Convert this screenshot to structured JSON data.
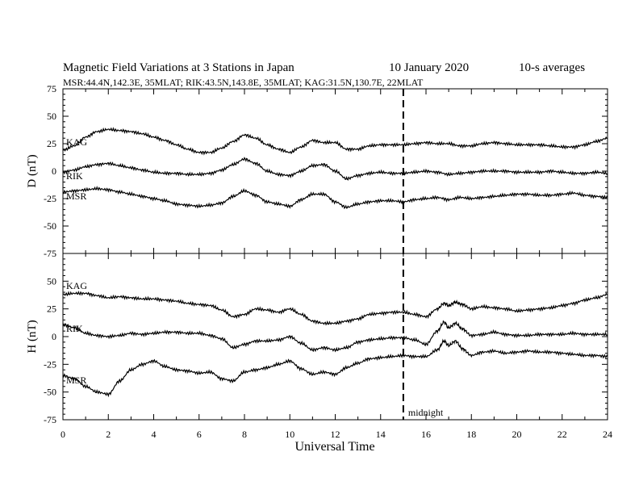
{
  "header": {
    "title": "Magnetic Field Variations at 3 Stations in Japan",
    "date": "10 January  2020",
    "averaging": "10-s averages",
    "stations_line": "MSR:44.4N,142.3E, 35MLAT;  RIK:43.5N,143.8E, 35MLAT;  KAG:31.5N,130.7E, 22MLAT"
  },
  "colors": {
    "axis": "#000000",
    "trace": "#000000",
    "background": "#ffffff"
  },
  "chart_data": [
    {
      "type": "line",
      "panel": "D",
      "ylabel": "D (nT)",
      "ylim": [
        -75,
        75
      ],
      "yticks": [
        "75",
        "50",
        "25",
        "0",
        "-25",
        "-50",
        "-75"
      ],
      "yticks_values": [
        75,
        50,
        25,
        0,
        -25,
        -50,
        -75
      ],
      "xlim": [
        0,
        24
      ],
      "x": [
        0,
        0.5,
        1,
        1.5,
        2,
        2.5,
        3,
        3.5,
        4,
        4.5,
        5,
        5.5,
        6,
        6.5,
        7,
        7.5,
        8,
        8.5,
        9,
        9.5,
        10,
        10.5,
        11,
        11.5,
        12,
        12.5,
        13,
        13.5,
        14,
        14.5,
        15,
        15.5,
        16,
        16.5,
        17,
        17.5,
        18,
        18.5,
        19,
        19.5,
        20,
        20.5,
        21,
        21.5,
        22,
        22.5,
        23,
        23.5,
        24
      ],
      "series": [
        {
          "name": "KAG",
          "values": [
            19,
            23,
            31,
            36,
            38,
            37,
            36,
            34,
            31,
            28,
            24,
            20,
            17,
            17,
            21,
            27,
            33,
            30,
            24,
            20,
            17,
            22,
            28,
            26,
            26,
            20,
            20,
            23,
            24,
            24,
            24,
            25,
            26,
            25,
            25,
            23,
            23,
            25,
            26,
            25,
            24,
            24,
            24,
            23,
            22,
            22,
            24,
            27,
            30
          ]
        },
        {
          "name": "RIK",
          "values": [
            -1,
            1,
            4,
            6,
            7,
            5,
            3,
            1,
            -1,
            -2,
            -2,
            -3,
            -3,
            -2,
            1,
            6,
            11,
            7,
            0,
            -3,
            -4,
            0,
            5,
            6,
            0,
            -7,
            -4,
            -2,
            -1,
            -2,
            -2,
            -1,
            0,
            -1,
            -3,
            -2,
            -1,
            0,
            0,
            0,
            -1,
            -1,
            -1,
            0,
            -1,
            -2,
            -2,
            -1,
            -2
          ]
        },
        {
          "name": "MSR",
          "values": [
            -19,
            -18,
            -17,
            -16,
            -17,
            -19,
            -21,
            -23,
            -25,
            -27,
            -30,
            -31,
            -32,
            -31,
            -29,
            -23,
            -18,
            -22,
            -28,
            -30,
            -32,
            -26,
            -21,
            -21,
            -28,
            -33,
            -30,
            -28,
            -27,
            -27,
            -28,
            -26,
            -25,
            -24,
            -26,
            -24,
            -25,
            -24,
            -23,
            -22,
            -21,
            -21,
            -22,
            -22,
            -21,
            -20,
            -22,
            -23,
            -24
          ]
        }
      ]
    },
    {
      "type": "line",
      "panel": "H",
      "ylabel": "H (nT)",
      "ylim": [
        -75,
        75
      ],
      "yticks": [
        "50",
        "25",
        "0",
        "-25",
        "-50",
        "-75"
      ],
      "yticks_values": [
        50,
        25,
        0,
        -25,
        -50,
        -75
      ],
      "xlabel": "Universal Time",
      "xticks": [
        "0",
        "2",
        "4",
        "6",
        "8",
        "10",
        "12",
        "14",
        "16",
        "18",
        "20",
        "22",
        "24"
      ],
      "xticks_values": [
        0,
        2,
        4,
        6,
        8,
        10,
        12,
        14,
        16,
        18,
        20,
        22,
        24
      ],
      "xlim": [
        0,
        24
      ],
      "x": [
        0,
        0.5,
        1,
        1.5,
        2,
        2.5,
        3,
        3.5,
        4,
        4.5,
        5,
        5.5,
        6,
        6.5,
        7,
        7.5,
        8,
        8.5,
        9,
        9.5,
        10,
        10.5,
        11,
        11.5,
        12,
        12.5,
        13,
        13.5,
        14,
        14.5,
        15,
        15.5,
        16,
        16.5,
        16.8,
        17,
        17.3,
        17.6,
        18,
        18.5,
        19,
        19.5,
        20,
        20.5,
        21,
        21.5,
        22,
        22.5,
        23,
        23.5,
        24
      ],
      "series": [
        {
          "name": "KAG",
          "values": [
            38,
            39,
            39,
            37,
            35,
            36,
            35,
            34,
            34,
            33,
            32,
            30,
            29,
            28,
            24,
            18,
            20,
            25,
            24,
            22,
            25,
            20,
            14,
            12,
            12,
            14,
            16,
            20,
            21,
            22,
            22,
            20,
            18,
            25,
            30,
            28,
            31,
            29,
            25,
            27,
            26,
            25,
            23,
            24,
            25,
            26,
            28,
            30,
            33,
            35,
            38
          ]
        },
        {
          "name": "RIK",
          "values": [
            11,
            8,
            3,
            1,
            0,
            1,
            3,
            2,
            3,
            4,
            4,
            3,
            3,
            1,
            -2,
            -10,
            -7,
            -4,
            -4,
            -3,
            0,
            -6,
            -12,
            -10,
            -12,
            -10,
            -5,
            -3,
            -2,
            -1,
            -1,
            -3,
            -7,
            5,
            13,
            8,
            12,
            7,
            1,
            2,
            4,
            2,
            1,
            1,
            2,
            2,
            2,
            3,
            2,
            2,
            2
          ]
        },
        {
          "name": "MSR",
          "values": [
            -35,
            -38,
            -45,
            -50,
            -52,
            -40,
            -30,
            -25,
            -22,
            -27,
            -30,
            -31,
            -33,
            -32,
            -38,
            -40,
            -32,
            -30,
            -28,
            -25,
            -22,
            -29,
            -34,
            -32,
            -34,
            -28,
            -24,
            -20,
            -19,
            -18,
            -17,
            -18,
            -18,
            -12,
            -4,
            -8,
            -4,
            -11,
            -17,
            -14,
            -13,
            -15,
            -14,
            -13,
            -14,
            -14,
            -15,
            -16,
            -17,
            -17,
            -18
          ]
        }
      ],
      "vline": {
        "x": 15,
        "label": "midnight"
      }
    }
  ]
}
